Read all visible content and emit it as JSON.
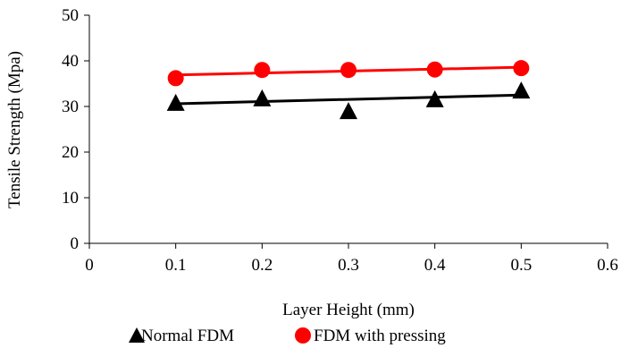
{
  "chart_data": {
    "type": "scatter",
    "xlabel": "Layer Height (mm)",
    "ylabel": "Tensile Strength (Mpa)",
    "xlim": [
      0,
      0.6
    ],
    "ylim": [
      0,
      50
    ],
    "xticks": [
      0,
      0.1,
      0.2,
      0.3,
      0.4,
      0.5,
      0.6
    ],
    "yticks": [
      0,
      10,
      20,
      30,
      40,
      50
    ],
    "x_tick_labels": [
      "0",
      "0.1",
      "0.2",
      "0.3",
      "0.4",
      "0.5",
      "0.6"
    ],
    "y_tick_labels": [
      "0",
      "10",
      "20",
      "30",
      "40",
      "50"
    ],
    "grid": false,
    "legend_position": "bottom",
    "series": [
      {
        "name": "Normal FDM",
        "marker": "triangle",
        "color": "#000000",
        "x": [
          0.1,
          0.2,
          0.3,
          0.4,
          0.5
        ],
        "y": [
          30.8,
          31.8,
          29.0,
          31.6,
          33.5
        ],
        "trendline": {
          "type": "linear",
          "x": [
            0.1,
            0.5
          ],
          "y": [
            30.6,
            32.5
          ]
        }
      },
      {
        "name": "FDM with pressing",
        "marker": "circle",
        "color": "#ff0000",
        "x": [
          0.1,
          0.2,
          0.3,
          0.4,
          0.5
        ],
        "y": [
          36.2,
          38.0,
          38.0,
          38.1,
          38.4
        ],
        "trendline": {
          "type": "linear",
          "x": [
            0.1,
            0.5
          ],
          "y": [
            36.9,
            38.6
          ]
        }
      }
    ]
  }
}
